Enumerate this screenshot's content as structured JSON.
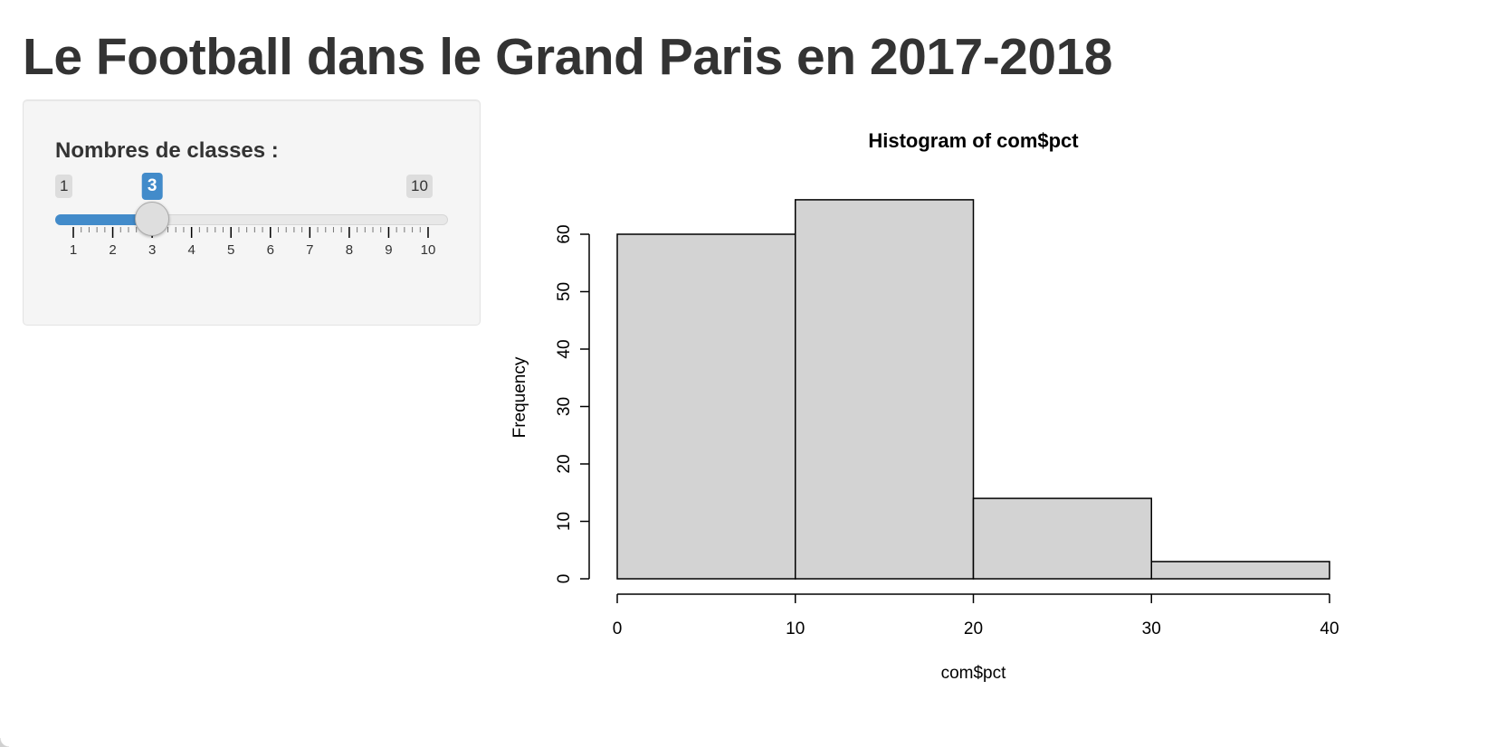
{
  "page": {
    "title": "Le Football dans le Grand Paris en 2017-2018"
  },
  "sidebar": {
    "slider": {
      "label": "Nombres de classes :",
      "min": 1,
      "max": 10,
      "value": 3,
      "min_label": "1",
      "max_label": "10",
      "value_label": "3",
      "tick_labels": [
        "1",
        "2",
        "3",
        "4",
        "5",
        "6",
        "7",
        "8",
        "9",
        "10"
      ],
      "accent_color": "#428bca"
    }
  },
  "chart_data": {
    "type": "bar",
    "title": "Histogram of com$pct",
    "xlabel": "com$pct",
    "ylabel": "Frequency",
    "bins": [
      {
        "from": 0,
        "to": 10,
        "count": 60
      },
      {
        "from": 10,
        "to": 20,
        "count": 66
      },
      {
        "from": 20,
        "to": 30,
        "count": 14
      },
      {
        "from": 30,
        "to": 40,
        "count": 3
      }
    ],
    "xlim": [
      0,
      40
    ],
    "ylim": [
      0,
      66
    ],
    "x_ticks": [
      "0",
      "10",
      "20",
      "30",
      "40"
    ],
    "y_ticks": [
      "0",
      "10",
      "20",
      "30",
      "40",
      "50",
      "60"
    ],
    "bar_color": "#d3d3d3",
    "grid": false
  }
}
